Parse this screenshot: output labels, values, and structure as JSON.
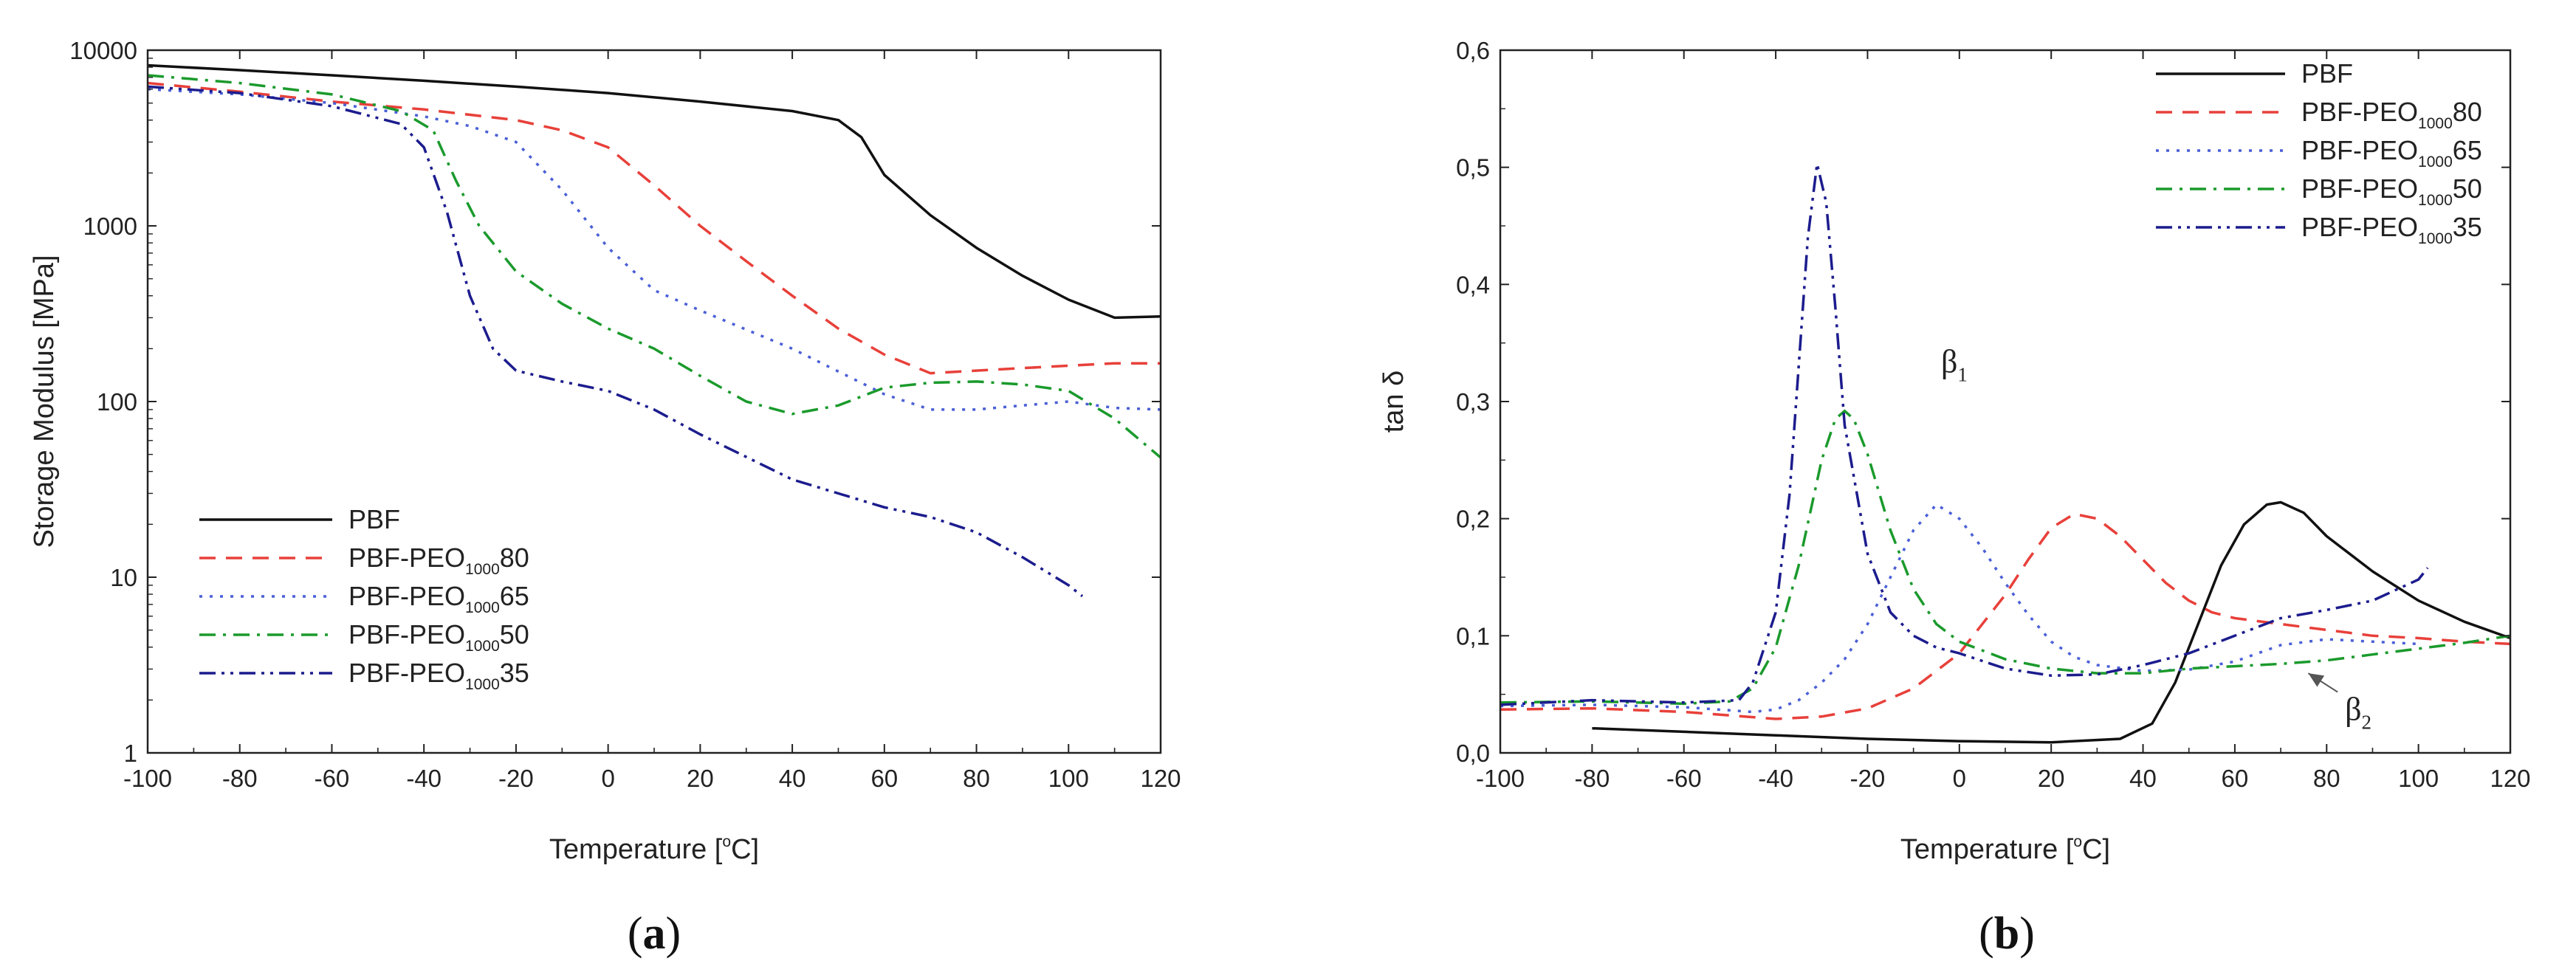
{
  "chart_data": [
    {
      "id": "a",
      "type": "line",
      "panel_label": "(a)",
      "panel_open": "(",
      "panel_letter": "a",
      "panel_close": ")",
      "xlabel": "Temperature [°C]",
      "xlabel_main": "Temperature [",
      "xlabel_unit_sup": "o",
      "xlabel_unit": "C]",
      "ylabel": "Storage Modulus [MPa]",
      "yscale": "log",
      "xlim": [
        -100,
        120
      ],
      "ylim": [
        1,
        10000
      ],
      "xticks": [
        "-100",
        "-80",
        "-60",
        "-40",
        "-20",
        "0",
        "20",
        "40",
        "60",
        "80",
        "100",
        "120"
      ],
      "yticks": [
        "1",
        "10",
        "100",
        "1000",
        "10000"
      ],
      "legend_position": "bottom-left",
      "series": [
        {
          "name": "PBF",
          "label_main": "PBF",
          "label_sub": "",
          "label_tail": "",
          "color": "#111111",
          "dash": "",
          "x": [
            -100,
            -80,
            -60,
            -40,
            -20,
            0,
            20,
            40,
            50,
            55,
            60,
            70,
            80,
            90,
            100,
            110,
            120
          ],
          "y": [
            8200,
            7700,
            7200,
            6700,
            6200,
            5700,
            5100,
            4500,
            4000,
            3200,
            1950,
            1150,
            750,
            520,
            380,
            300,
            305
          ]
        },
        {
          "name": "PBF-PEO100080",
          "label_main": "PBF-PEO",
          "label_sub": "1000",
          "label_tail": "80",
          "color": "#e8403a",
          "dash": "22 14",
          "x": [
            -100,
            -80,
            -60,
            -40,
            -20,
            -10,
            0,
            10,
            20,
            30,
            40,
            50,
            60,
            70,
            80,
            90,
            100,
            110,
            120
          ],
          "y": [
            6500,
            5800,
            5100,
            4600,
            4000,
            3500,
            2800,
            1700,
            1000,
            630,
            400,
            260,
            185,
            145,
            150,
            155,
            160,
            165,
            165
          ]
        },
        {
          "name": "PBF-PEO100065",
          "label_main": "PBF-PEO",
          "label_sub": "1000",
          "label_tail": "65",
          "color": "#4a5fd6",
          "dash": "4 10",
          "x": [
            -100,
            -80,
            -60,
            -40,
            -30,
            -20,
            -10,
            0,
            10,
            20,
            40,
            60,
            70,
            80,
            90,
            100,
            110,
            120
          ],
          "y": [
            6000,
            5600,
            5000,
            4200,
            3700,
            3000,
            1600,
            750,
            430,
            330,
            200,
            110,
            90,
            90,
            95,
            100,
            92,
            90
          ]
        },
        {
          "name": "PBF-PEO100050",
          "label_main": "PBF-PEO",
          "label_sub": "1000",
          "label_tail": "50",
          "color": "#1a9a2c",
          "dash": "22 10 4 10",
          "x": [
            -100,
            -80,
            -60,
            -45,
            -38,
            -33,
            -28,
            -20,
            -10,
            0,
            10,
            20,
            30,
            40,
            50,
            60,
            70,
            80,
            90,
            100,
            110,
            120
          ],
          "y": [
            7200,
            6500,
            5600,
            4500,
            3500,
            1800,
            1000,
            550,
            360,
            260,
            200,
            140,
            100,
            85,
            95,
            120,
            128,
            130,
            125,
            115,
            80,
            48
          ]
        },
        {
          "name": "PBF-PEO100035",
          "label_main": "PBF-PEO",
          "label_sub": "1000",
          "label_tail": "35",
          "color": "#1c1c8e",
          "dash": "22 8 4 8 4 8",
          "x": [
            -100,
            -80,
            -60,
            -45,
            -40,
            -35,
            -30,
            -25,
            -20,
            -10,
            0,
            10,
            20,
            40,
            60,
            70,
            80,
            90,
            100,
            103
          ],
          "y": [
            6200,
            5700,
            4800,
            3800,
            2800,
            1200,
            400,
            200,
            150,
            130,
            115,
            90,
            65,
            36,
            25,
            22,
            18,
            13,
            9,
            7.8
          ]
        }
      ]
    },
    {
      "id": "b",
      "type": "line",
      "panel_label": "(b)",
      "panel_open": "(",
      "panel_letter": "b",
      "panel_close": ")",
      "xlabel": "Temperature [°C]",
      "xlabel_main": "Temperature [",
      "xlabel_unit_sup": "o",
      "xlabel_unit": "C]",
      "ylabel": "tan δ",
      "xlim": [
        -100,
        120
      ],
      "ylim": [
        0,
        0.6
      ],
      "xticks": [
        "-100",
        "-80",
        "-60",
        "-40",
        "-20",
        "0",
        "20",
        "40",
        "60",
        "80",
        "100",
        "120"
      ],
      "yticks": [
        "0,0",
        "0,1",
        "0,2",
        "0,3",
        "0,4",
        "0,5",
        "0,6"
      ],
      "legend_position": "top-right",
      "annotations": [
        {
          "text": "β1",
          "main": "β",
          "sub": "1",
          "x": -4,
          "y": 0.325
        },
        {
          "text": "β2",
          "main": "β",
          "sub": "2",
          "x": 84,
          "y": 0.028,
          "arrow_to": [
            76,
            0.068
          ]
        }
      ],
      "series": [
        {
          "name": "PBF",
          "label_main": "PBF",
          "label_sub": "",
          "label_tail": "",
          "color": "#111111",
          "dash": "",
          "x": [
            -80,
            -60,
            -40,
            -20,
            0,
            20,
            35,
            42,
            47,
            52,
            57,
            62,
            67,
            70,
            75,
            80,
            90,
            100,
            110,
            120
          ],
          "y": [
            0.021,
            0.018,
            0.015,
            0.012,
            0.01,
            0.009,
            0.012,
            0.025,
            0.06,
            0.11,
            0.16,
            0.195,
            0.212,
            0.214,
            0.205,
            0.185,
            0.155,
            0.13,
            0.112,
            0.098
          ]
        },
        {
          "name": "PBF-PEO100080",
          "label_main": "PBF-PEO",
          "label_sub": "1000",
          "label_tail": "80",
          "color": "#e8403a",
          "dash": "22 14",
          "x": [
            -100,
            -80,
            -60,
            -40,
            -30,
            -20,
            -10,
            0,
            10,
            15,
            20,
            25,
            30,
            35,
            40,
            45,
            50,
            55,
            60,
            70,
            80,
            90,
            100,
            110,
            120
          ],
          "y": [
            0.037,
            0.038,
            0.035,
            0.029,
            0.031,
            0.038,
            0.055,
            0.085,
            0.135,
            0.165,
            0.192,
            0.204,
            0.2,
            0.185,
            0.165,
            0.145,
            0.13,
            0.12,
            0.115,
            0.11,
            0.105,
            0.1,
            0.098,
            0.095,
            0.093
          ]
        },
        {
          "name": "PBF-PEO100065",
          "label_main": "PBF-PEO",
          "label_sub": "1000",
          "label_tail": "65",
          "color": "#4a5fd6",
          "dash": "4 10",
          "x": [
            -100,
            -80,
            -60,
            -45,
            -40,
            -35,
            -30,
            -25,
            -20,
            -15,
            -10,
            -5,
            0,
            5,
            10,
            15,
            20,
            25,
            30,
            40,
            50,
            60,
            70,
            80,
            90,
            100
          ],
          "y": [
            0.04,
            0.041,
            0.039,
            0.035,
            0.037,
            0.045,
            0.06,
            0.08,
            0.11,
            0.15,
            0.19,
            0.212,
            0.2,
            0.175,
            0.145,
            0.118,
            0.095,
            0.082,
            0.075,
            0.07,
            0.071,
            0.078,
            0.092,
            0.097,
            0.095,
            0.093
          ]
        },
        {
          "name": "PBF-PEO100050",
          "label_main": "PBF-PEO",
          "label_sub": "1000",
          "label_tail": "50",
          "color": "#1a9a2c",
          "dash": "22 10 4 10",
          "x": [
            -100,
            -80,
            -60,
            -50,
            -45,
            -40,
            -35,
            -30,
            -27,
            -25,
            -23,
            -20,
            -15,
            -10,
            -5,
            0,
            10,
            20,
            30,
            40,
            50,
            60,
            70,
            80,
            90,
            100,
            110,
            120
          ],
          "y": [
            0.043,
            0.044,
            0.042,
            0.044,
            0.055,
            0.09,
            0.16,
            0.25,
            0.285,
            0.292,
            0.285,
            0.255,
            0.19,
            0.14,
            0.11,
            0.095,
            0.08,
            0.072,
            0.068,
            0.068,
            0.072,
            0.074,
            0.076,
            0.079,
            0.084,
            0.089,
            0.094,
            0.1
          ]
        },
        {
          "name": "PBF-PEO100035",
          "label_main": "PBF-PEO",
          "label_sub": "1000",
          "label_tail": "35",
          "color": "#1c1c8e",
          "dash": "22 8 4 8 4 8",
          "x": [
            -100,
            -80,
            -60,
            -48,
            -45,
            -40,
            -37,
            -35,
            -33,
            -31,
            -29,
            -27,
            -25,
            -20,
            -15,
            -10,
            -5,
            0,
            10,
            20,
            30,
            40,
            50,
            60,
            70,
            80,
            90,
            100,
            102
          ],
          "y": [
            0.041,
            0.045,
            0.043,
            0.045,
            0.06,
            0.12,
            0.22,
            0.33,
            0.44,
            0.503,
            0.47,
            0.38,
            0.28,
            0.17,
            0.12,
            0.1,
            0.09,
            0.085,
            0.072,
            0.066,
            0.067,
            0.075,
            0.085,
            0.1,
            0.115,
            0.122,
            0.13,
            0.148,
            0.158
          ]
        }
      ]
    }
  ]
}
